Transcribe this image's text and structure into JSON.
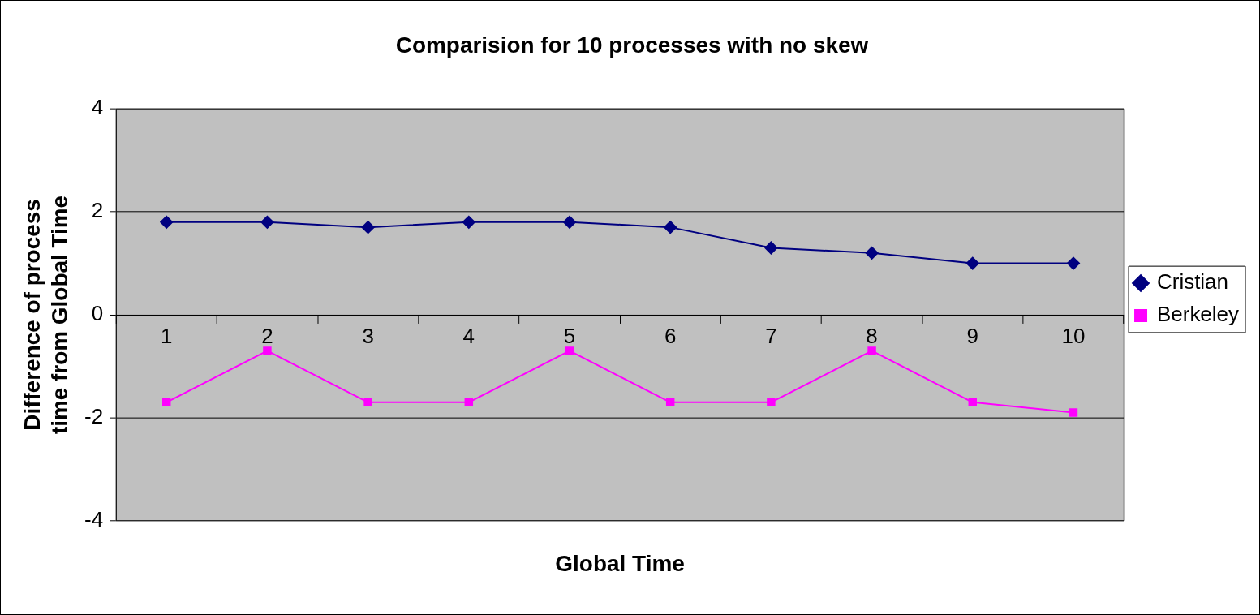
{
  "chart_data": {
    "type": "line",
    "title": "Comparision for 10 processes with no skew",
    "xlabel": "Global Time",
    "ylabel": "Difference of process time from Global Time",
    "categories": [
      "1",
      "2",
      "3",
      "4",
      "5",
      "6",
      "7",
      "8",
      "9",
      "10"
    ],
    "series": [
      {
        "name": "Cristian",
        "color": "#000080",
        "marker": "diamond",
        "values": [
          1.8,
          1.8,
          1.7,
          1.8,
          1.8,
          1.7,
          1.3,
          1.2,
          1.0,
          1.0
        ]
      },
      {
        "name": "Berkeley",
        "color": "#ff00ff",
        "marker": "square",
        "values": [
          -1.7,
          -0.7,
          -1.7,
          -1.7,
          -0.7,
          -1.7,
          -1.7,
          -0.7,
          -1.7,
          -1.9
        ]
      }
    ],
    "ylim": [
      -4,
      4
    ],
    "yticks": [
      -4,
      -2,
      0,
      2,
      4
    ],
    "grid": "y",
    "legend": "right"
  }
}
